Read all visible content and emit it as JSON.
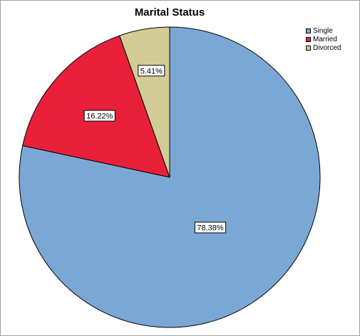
{
  "chart_data": {
    "type": "pie",
    "title": "Marital Status",
    "categories": [
      "Single",
      "Married",
      "Divorced"
    ],
    "values": [
      78.38,
      16.22,
      5.41
    ],
    "labels": [
      "78.38%",
      "16.22%",
      "5.41%"
    ],
    "colors": [
      "#7ba7d4",
      "#e8203a",
      "#d4cc96"
    ],
    "start": "12 o'clock",
    "direction": "clockwise",
    "legend": "top-right"
  }
}
